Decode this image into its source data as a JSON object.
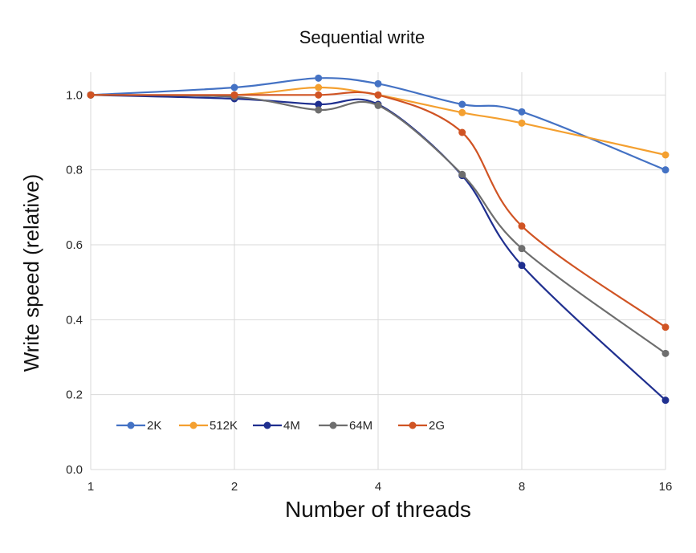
{
  "chart_data": {
    "type": "line",
    "title": "Sequential write",
    "xlabel": "Number of threads",
    "ylabel": "Write speed (relative)",
    "x_scale": "log2",
    "x_ticks": [
      "1",
      "2",
      "4",
      "8",
      "16"
    ],
    "y_ticks": [
      "0.0",
      "0.2",
      "0.4",
      "0.6",
      "0.8",
      "1.0"
    ],
    "ylim": [
      0,
      1.05
    ],
    "grid": "vertical and horizontal",
    "legend_position": "bottom-left",
    "x": [
      1,
      2,
      3,
      4,
      6,
      8,
      16
    ],
    "series": [
      {
        "name": "2K",
        "color": "#4472C4",
        "values": [
          1.0,
          1.02,
          1.045,
          1.03,
          0.975,
          0.955,
          0.8
        ]
      },
      {
        "name": "512K",
        "color": "#F4A030",
        "values": [
          1.0,
          1.0,
          1.02,
          1.0,
          0.953,
          0.925,
          0.84
        ]
      },
      {
        "name": "4M",
        "color": "#1F2F8F",
        "values": [
          1.0,
          0.99,
          0.975,
          0.975,
          0.785,
          0.545,
          0.185
        ]
      },
      {
        "name": "64M",
        "color": "#6E6E6E",
        "values": [
          1.0,
          0.995,
          0.96,
          0.972,
          0.788,
          0.59,
          0.31
        ]
      },
      {
        "name": "2G",
        "color": "#D05424",
        "values": [
          1.0,
          1.0,
          1.0,
          1.0,
          0.9,
          0.65,
          0.38
        ]
      }
    ]
  }
}
